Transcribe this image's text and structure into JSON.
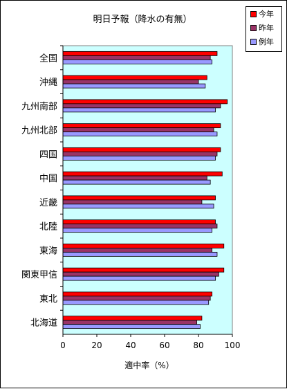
{
  "chart_data": {
    "type": "bar",
    "orientation": "horizontal",
    "title": "明日予報（降水の有無）",
    "xlabel": "適中率（%）",
    "ylabel": "",
    "xlim": [
      0,
      100
    ],
    "xticks": [
      0,
      20,
      40,
      60,
      80,
      100
    ],
    "grid": false,
    "legend_position": "top-right",
    "plot_background": "#ccffff",
    "categories": [
      "全国",
      "沖縄",
      "九州南部",
      "九州北部",
      "四国",
      "中国",
      "近畿",
      "北陸",
      "東海",
      "関東甲信",
      "東北",
      "北海道"
    ],
    "series": [
      {
        "name": "今年",
        "color": "#ff0000",
        "values": [
          91,
          85,
          97,
          93,
          93,
          94,
          90,
          90,
          95,
          95,
          88,
          82
        ]
      },
      {
        "name": "昨年",
        "color": "#993366",
        "values": [
          87,
          80,
          93,
          89,
          91,
          85,
          82,
          91,
          88,
          92,
          87,
          79
        ]
      },
      {
        "name": "例年",
        "color": "#9999ff",
        "values": [
          88,
          84,
          90,
          91,
          90,
          87,
          89,
          88,
          91,
          90,
          86,
          81
        ]
      }
    ]
  }
}
